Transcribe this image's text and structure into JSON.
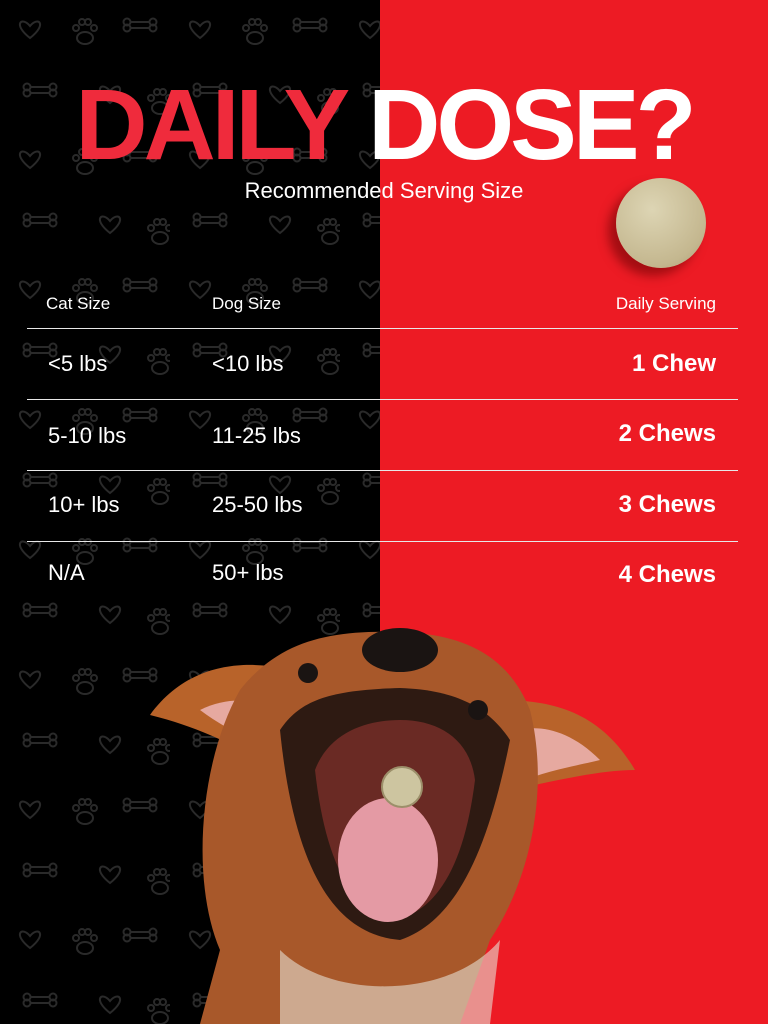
{
  "title": {
    "part1": "DAILY",
    "part2": "DOSE?"
  },
  "subtitle": "Recommended Serving Size",
  "colors": {
    "left_bg": "#000000",
    "right_bg": "#ed1b24",
    "title_red": "#ef2b3c"
  },
  "table": {
    "headers": [
      "Cat Size",
      "Dog Size",
      "Daily Serving"
    ],
    "rows": [
      {
        "cat": "<5 lbs",
        "dog": "<10 lbs",
        "serving": "1 Chew"
      },
      {
        "cat": "5-10 lbs",
        "dog": "11-25 lbs",
        "serving": "2 Chews"
      },
      {
        "cat": "10+ lbs",
        "dog": "25-50 lbs",
        "serving": "3 Chews"
      },
      {
        "cat": "N/A",
        "dog": "50+ lbs",
        "serving": "4 Chews"
      }
    ]
  }
}
